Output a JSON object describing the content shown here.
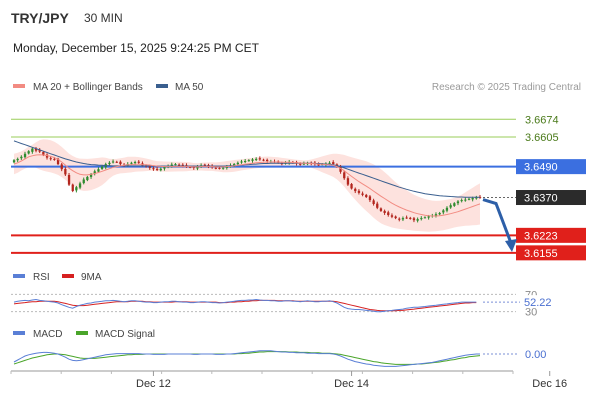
{
  "header": {
    "pair": "TRY/JPY",
    "timeframe": "30 MIN",
    "datetime": "Monday, December 15, 2025 9:24:25 PM CET"
  },
  "credit": "Research © 2025 Trading Central",
  "colors": {
    "ma20": "#f28b82",
    "ma50": "#3a5f8f",
    "band_fill": "#fde2de",
    "resistance": "#9acd59",
    "pivot": "#3b6fe0",
    "support": "#e0201b",
    "up": "#2e8b2e",
    "down": "#b3261e",
    "arrow": "#2d5fa8",
    "rsi": "#5a7fd6",
    "rsi_ma": "#d62020",
    "macd": "#5a7fd6",
    "macd_signal": "#4aa52a"
  },
  "chart_data": [
    {
      "type": "candlestick",
      "legend": [
        "MA 20 + Bollinger Bands",
        "MA 50"
      ],
      "ylim": [
        3.6135,
        3.671
      ],
      "levels": [
        {
          "value": 3.6674,
          "label": "3.6674",
          "kind": "resistance"
        },
        {
          "value": 3.6605,
          "label": "3.6605",
          "kind": "resistance"
        },
        {
          "value": 3.649,
          "label": "3.6490",
          "kind": "pivot"
        },
        {
          "value": 3.637,
          "label": "3.6370",
          "kind": "last"
        },
        {
          "value": 3.6223,
          "label": "3.6223",
          "kind": "support"
        },
        {
          "value": 3.6155,
          "label": "3.6155",
          "kind": "support"
        }
      ],
      "x_ticks": [
        {
          "index": 38,
          "label": "Dec 12"
        },
        {
          "index": 92,
          "label": "Dec 14"
        },
        {
          "index": 146,
          "label": "Dec 16"
        }
      ],
      "close": [
        3.6515,
        3.652,
        3.6528,
        3.654,
        3.655,
        3.656,
        3.6552,
        3.6548,
        3.6535,
        3.6525,
        3.652,
        3.6518,
        3.65,
        3.648,
        3.646,
        3.642,
        3.6395,
        3.641,
        3.6425,
        3.644,
        3.645,
        3.646,
        3.6472,
        3.648,
        3.649,
        3.65,
        3.6505,
        3.651,
        3.6508,
        3.65,
        3.6495,
        3.65,
        3.6505,
        3.6508,
        3.6505,
        3.6495,
        3.649,
        3.6485,
        3.648,
        3.6478,
        3.6482,
        3.6488,
        3.6492,
        3.6498,
        3.65,
        3.6497,
        3.6493,
        3.649,
        3.6488,
        3.6485,
        3.649,
        3.6495,
        3.6497,
        3.6492,
        3.6488,
        3.6485,
        3.6483,
        3.6486,
        3.649,
        3.6495,
        3.65,
        3.6505,
        3.651,
        3.6512,
        3.6515,
        3.6518,
        3.652,
        3.6518,
        3.6515,
        3.6512,
        3.651,
        3.6508,
        3.6505,
        3.6503,
        3.6505,
        3.6508,
        3.6505,
        3.6502,
        3.65,
        3.6502,
        3.6505,
        3.6503,
        3.65,
        3.6498,
        3.65,
        3.6502,
        3.6505,
        3.65,
        3.649,
        3.647,
        3.6445,
        3.642,
        3.6405,
        3.6395,
        3.6388,
        3.638,
        3.6372,
        3.636,
        3.6345,
        3.633,
        3.6318,
        3.631,
        3.6302,
        3.6295,
        3.629,
        3.6285,
        3.629,
        3.6292,
        3.6288,
        3.6282,
        3.6286,
        3.629,
        3.6293,
        3.6297,
        3.63,
        3.6305,
        3.631,
        3.632,
        3.633,
        3.634,
        3.6348,
        3.6355,
        3.636,
        3.6362,
        3.6365,
        3.6368,
        3.637,
        3.637
      ],
      "ma20": [
        3.65,
        3.6505,
        3.6512,
        3.652,
        3.6528,
        3.6532,
        3.6535,
        3.6536,
        3.6535,
        3.6533,
        3.653,
        3.6525,
        3.6518,
        3.6508,
        3.6496,
        3.6484,
        3.6474,
        3.6466,
        3.646,
        3.6458,
        3.6458,
        3.646,
        3.6463,
        3.6467,
        3.6472,
        3.6477,
        3.6482,
        3.6487,
        3.649,
        3.6493,
        3.6495,
        3.6497,
        3.6498,
        3.6499,
        3.6499,
        3.6498,
        3.6497,
        3.6496,
        3.6494,
        3.6492,
        3.6491,
        3.649,
        3.649,
        3.649,
        3.649,
        3.649,
        3.649,
        3.649,
        3.649,
        3.6489,
        3.6489,
        3.649,
        3.649,
        3.649,
        3.649,
        3.6489,
        3.6489,
        3.6489,
        3.649,
        3.6491,
        3.6493,
        3.6495,
        3.6497,
        3.6499,
        3.6501,
        3.6503,
        3.6505,
        3.6506,
        3.6507,
        3.6508,
        3.6508,
        3.6508,
        3.6508,
        3.6507,
        3.6507,
        3.6507,
        3.6506,
        3.6505,
        3.6504,
        3.6503,
        3.6503,
        3.6502,
        3.6501,
        3.65,
        3.6499,
        3.6498,
        3.6497,
        3.6495,
        3.649,
        3.6483,
        3.6474,
        3.6463,
        3.6452,
        3.6442,
        3.6432,
        3.6423,
        3.6414,
        3.6405,
        3.6395,
        3.6385,
        3.6375,
        3.6366,
        3.6357,
        3.6348,
        3.634,
        3.6333,
        3.6327,
        3.6321,
        3.6316,
        3.6311,
        3.6307,
        3.6304,
        3.6301,
        3.6299,
        3.6298,
        3.6298,
        3.6299,
        3.6301,
        3.6304,
        3.6307,
        3.6311,
        3.6315,
        3.632,
        3.6325,
        3.633,
        3.6335,
        3.634,
        3.6345
      ],
      "ma50": [
        3.659,
        3.6585,
        3.658,
        3.6575,
        3.657,
        3.6565,
        3.656,
        3.6555,
        3.655,
        3.6545,
        3.654,
        3.6535,
        3.653,
        3.6525,
        3.652,
        3.6516,
        3.6512,
        3.6508,
        3.6505,
        3.6502,
        3.65,
        3.6498,
        3.6497,
        3.6496,
        3.6495,
        3.6494,
        3.6494,
        3.6493,
        3.6493,
        3.6493,
        3.6493,
        3.6493,
        3.6493,
        3.6493,
        3.6493,
        3.6493,
        3.6493,
        3.6493,
        3.6493,
        3.6492,
        3.6492,
        3.6492,
        3.6492,
        3.6492,
        3.6492,
        3.6492,
        3.6492,
        3.6492,
        3.6492,
        3.6492,
        3.6492,
        3.6492,
        3.6492,
        3.6492,
        3.6492,
        3.6492,
        3.6492,
        3.6492,
        3.6493,
        3.6493,
        3.6494,
        3.6495,
        3.6496,
        3.6497,
        3.6498,
        3.6499,
        3.65,
        3.6501,
        3.6502,
        3.6502,
        3.6503,
        3.6503,
        3.6503,
        3.6503,
        3.6503,
        3.6503,
        3.6503,
        3.6503,
        3.6503,
        3.6503,
        3.6503,
        3.6503,
        3.6502,
        3.6502,
        3.6501,
        3.65,
        3.6499,
        3.6497,
        3.6494,
        3.649,
        3.6485,
        3.648,
        3.6475,
        3.647,
        3.6465,
        3.646,
        3.6455,
        3.645,
        3.6445,
        3.644,
        3.6435,
        3.643,
        3.6425,
        3.642,
        3.6415,
        3.641,
        3.6406,
        3.6402,
        3.6398,
        3.6394,
        3.6391,
        3.6388,
        3.6385,
        3.6383,
        3.6381,
        3.6379,
        3.6377,
        3.6376,
        3.6375,
        3.6374,
        3.6373,
        3.6372,
        3.6372,
        3.6371,
        3.6371,
        3.6371,
        3.6371,
        3.6371
      ]
    },
    {
      "type": "line",
      "legend": [
        "RSI",
        "9MA"
      ],
      "ylim": [
        20,
        80
      ],
      "ref_lines": [
        {
          "value": 70,
          "label": "70"
        },
        {
          "value": 30,
          "label": "30"
        }
      ],
      "last_label": "52.22",
      "rsi": [
        52,
        54,
        55,
        56,
        55,
        57,
        58,
        56,
        55,
        54,
        53,
        52,
        50,
        46,
        43,
        40,
        38,
        42,
        45,
        47,
        49,
        50,
        52,
        53,
        54,
        55,
        55,
        56,
        55,
        54,
        53,
        54,
        55,
        55,
        54,
        53,
        52,
        52,
        51,
        51,
        52,
        53,
        53,
        54,
        54,
        53,
        52,
        52,
        51,
        51,
        52,
        53,
        53,
        52,
        51,
        51,
        50,
        51,
        52,
        53,
        54,
        55,
        56,
        56,
        57,
        57,
        58,
        57,
        56,
        56,
        55,
        55,
        54,
        54,
        55,
        55,
        54,
        54,
        53,
        54,
        55,
        54,
        53,
        53,
        54,
        54,
        55,
        53,
        50,
        45,
        40,
        37,
        36,
        35,
        35,
        34,
        33,
        32,
        31,
        30,
        30,
        31,
        32,
        33,
        34,
        35,
        36,
        38,
        39,
        40,
        40,
        41,
        42,
        43,
        44,
        45,
        46,
        47,
        48,
        49,
        50,
        51,
        52,
        52,
        52,
        52,
        52
      ],
      "ma9": [
        48,
        49,
        50,
        51,
        52,
        53,
        53,
        54,
        54,
        54,
        54,
        54,
        53,
        51,
        49,
        47,
        45,
        44,
        44,
        44,
        45,
        46,
        47,
        48,
        49,
        50,
        51,
        52,
        53,
        53,
        53,
        53,
        54,
        54,
        54,
        54,
        53,
        53,
        52,
        52,
        52,
        52,
        52,
        52,
        53,
        53,
        53,
        53,
        52,
        52,
        52,
        52,
        52,
        52,
        52,
        52,
        51,
        51,
        51,
        52,
        52,
        53,
        53,
        54,
        54,
        55,
        55,
        56,
        56,
        56,
        56,
        56,
        55,
        55,
        55,
        55,
        55,
        54,
        54,
        54,
        54,
        54,
        54,
        54,
        54,
        54,
        54,
        54,
        53,
        51,
        49,
        47,
        45,
        43,
        41,
        39,
        37,
        35,
        34,
        33,
        32,
        32,
        32,
        32,
        32,
        33,
        33,
        34,
        35,
        36,
        37,
        38,
        39,
        40,
        41,
        42,
        43,
        44,
        45,
        46,
        47,
        48,
        49,
        50,
        50,
        51,
        51
      ]
    },
    {
      "type": "line",
      "legend": [
        "MACD",
        "MACD Signal"
      ],
      "ylim": [
        -0.0035,
        0.0035
      ],
      "ref_lines": [
        {
          "value": 0,
          "label": "0.00"
        }
      ],
      "macd": [
        -0.002,
        -0.0015,
        -0.001,
        -0.0005,
        -0.0002,
        0.0,
        0.0002,
        0.0003,
        0.0004,
        0.0004,
        0.0003,
        0.0002,
        0.0,
        -0.0004,
        -0.0008,
        -0.0013,
        -0.0016,
        -0.0017,
        -0.0016,
        -0.0014,
        -0.0012,
        -0.001,
        -0.0008,
        -0.0006,
        -0.0004,
        -0.0002,
        -0.0001,
        0.0,
        0.0001,
        0.0001,
        0.0001,
        0.0001,
        0.0001,
        0.0001,
        0.0001,
        0.0,
        0.0,
        0.0,
        -0.0001,
        -0.0001,
        -0.0001,
        -0.0001,
        0.0,
        0.0,
        0.0,
        0.0,
        0.0,
        0.0,
        0.0,
        -0.0001,
        -0.0001,
        0.0,
        0.0,
        0.0,
        0.0,
        -0.0001,
        -0.0001,
        -0.0001,
        0.0,
        0.0,
        0.0001,
        0.0002,
        0.0003,
        0.0004,
        0.0005,
        0.0006,
        0.0007,
        0.0008,
        0.0008,
        0.0008,
        0.0008,
        0.0007,
        0.0006,
        0.0005,
        0.0005,
        0.0004,
        0.0004,
        0.0003,
        0.0003,
        0.0003,
        0.0002,
        0.0002,
        0.0002,
        0.0001,
        0.0001,
        0.0001,
        0.0001,
        0.0,
        -0.0002,
        -0.0005,
        -0.0009,
        -0.0013,
        -0.0016,
        -0.0019,
        -0.0021,
        -0.0023,
        -0.0025,
        -0.0026,
        -0.0028,
        -0.0029,
        -0.003,
        -0.0031,
        -0.0031,
        -0.0031,
        -0.0031,
        -0.003,
        -0.0029,
        -0.0028,
        -0.0027,
        -0.0026,
        -0.0025,
        -0.0024,
        -0.0023,
        -0.0022,
        -0.0021,
        -0.0019,
        -0.0017,
        -0.0015,
        -0.0013,
        -0.0011,
        -0.0009,
        -0.0007,
        -0.0005,
        -0.0003,
        -0.0002,
        -0.0001,
        0.0,
        0.0
      ],
      "signal": [
        -0.0025,
        -0.0022,
        -0.0019,
        -0.0016,
        -0.0013,
        -0.001,
        -0.0008,
        -0.0006,
        -0.0004,
        -0.0002,
        -0.0001,
        0.0,
        0.0,
        -0.0001,
        -0.0002,
        -0.0004,
        -0.0006,
        -0.0008,
        -0.001,
        -0.0011,
        -0.0011,
        -0.0011,
        -0.0011,
        -0.001,
        -0.0009,
        -0.0008,
        -0.0007,
        -0.0006,
        -0.0005,
        -0.0004,
        -0.0003,
        -0.0002,
        -0.0002,
        -0.0001,
        -0.0001,
        -0.0001,
        0.0,
        0.0,
        0.0,
        0.0,
        0.0,
        0.0,
        0.0,
        0.0,
        0.0,
        0.0,
        0.0,
        0.0,
        0.0,
        0.0,
        0.0,
        0.0,
        0.0,
        0.0,
        0.0,
        0.0,
        0.0,
        0.0,
        0.0,
        0.0,
        0.0,
        0.0001,
        0.0001,
        0.0002,
        0.0002,
        0.0003,
        0.0004,
        0.0005,
        0.0005,
        0.0006,
        0.0006,
        0.0006,
        0.0006,
        0.0006,
        0.0006,
        0.0005,
        0.0005,
        0.0005,
        0.0004,
        0.0004,
        0.0004,
        0.0003,
        0.0003,
        0.0003,
        0.0002,
        0.0002,
        0.0002,
        0.0001,
        0.0,
        -0.0001,
        -0.0003,
        -0.0005,
        -0.0007,
        -0.0009,
        -0.0011,
        -0.0013,
        -0.0015,
        -0.0017,
        -0.0019,
        -0.002,
        -0.0022,
        -0.0023,
        -0.0024,
        -0.0025,
        -0.0026,
        -0.0026,
        -0.0026,
        -0.0026,
        -0.0026,
        -0.0026,
        -0.0025,
        -0.0025,
        -0.0024,
        -0.0023,
        -0.0022,
        -0.0021,
        -0.002,
        -0.0018,
        -0.0017,
        -0.0015,
        -0.0014,
        -0.0012,
        -0.001,
        -0.0009,
        -0.0007,
        -0.0006,
        -0.0005,
        -0.0004
      ]
    }
  ]
}
